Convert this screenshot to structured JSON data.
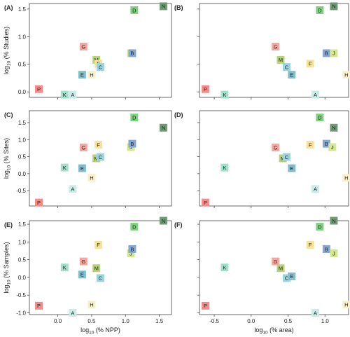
{
  "chart_data": [
    {
      "type": "scatter",
      "panel_label": "(A)",
      "title": "",
      "xlabel": "",
      "ylabel": "log10 (% Studies)",
      "xlim": [
        -0.42,
        1.68
      ],
      "ylim": [
        -0.1,
        1.6
      ],
      "xticks": [
        "0.0",
        "0.5",
        "1.0",
        "1.5"
      ],
      "show_xtick_labels": false,
      "yticks": [
        "0.0",
        "0.5",
        "1.0",
        "1.5"
      ],
      "show_ytick_labels": true,
      "points": [
        {
          "label": "P",
          "x": -0.28,
          "y": 0.05,
          "color": "#f28b8b"
        },
        {
          "label": "K",
          "x": 0.1,
          "y": -0.05,
          "color": "#a3e0cc"
        },
        {
          "label": "A",
          "x": 0.22,
          "y": -0.05,
          "color": "#c9ede6"
        },
        {
          "label": "G",
          "x": 0.38,
          "y": 0.82,
          "color": "#f2a7a0"
        },
        {
          "label": "E",
          "x": 0.36,
          "y": 0.31,
          "color": "#7fbfcf"
        },
        {
          "label": "H",
          "x": 0.5,
          "y": 0.31,
          "color": "#f7f0c8"
        },
        {
          "label": "M",
          "x": 0.57,
          "y": 0.58,
          "color": "#b9d17a"
        },
        {
          "label": "F",
          "x": 0.6,
          "y": 0.51,
          "color": "#f7e29a"
        },
        {
          "label": "C",
          "x": 0.63,
          "y": 0.45,
          "color": "#9dd4dc"
        },
        {
          "label": "J",
          "x": 1.08,
          "y": 0.7,
          "color": "#d3e88f"
        },
        {
          "label": "B",
          "x": 1.1,
          "y": 0.7,
          "color": "#86a8d0"
        },
        {
          "label": "D",
          "x": 1.13,
          "y": 1.48,
          "color": "#7fd07f"
        },
        {
          "label": "N",
          "x": 1.56,
          "y": 1.55,
          "color": "#6e9a74"
        }
      ]
    },
    {
      "type": "scatter",
      "panel_label": "(B)",
      "title": "",
      "xlabel": "",
      "ylabel": "",
      "xlim": [
        -0.7,
        1.32
      ],
      "ylim": [
        -0.1,
        1.6
      ],
      "xticks": [
        "-0.5",
        "0.0",
        "0.5",
        "1.0"
      ],
      "show_xtick_labels": false,
      "yticks": [
        "0.0",
        "0.5",
        "1.0",
        "1.5"
      ],
      "show_ytick_labels": false,
      "points": [
        {
          "label": "P",
          "x": -0.62,
          "y": 0.05,
          "color": "#f28b8b"
        },
        {
          "label": "K",
          "x": -0.36,
          "y": -0.05,
          "color": "#a3e0cc"
        },
        {
          "label": "G",
          "x": 0.33,
          "y": 0.82,
          "color": "#f2a7a0"
        },
        {
          "label": "M",
          "x": 0.4,
          "y": 0.58,
          "color": "#b9d17a"
        },
        {
          "label": "C",
          "x": 0.48,
          "y": 0.45,
          "color": "#9dd4dc"
        },
        {
          "label": "E",
          "x": 0.55,
          "y": 0.31,
          "color": "#7fbfcf"
        },
        {
          "label": "F",
          "x": 0.8,
          "y": 0.51,
          "color": "#f7e29a"
        },
        {
          "label": "A",
          "x": 0.87,
          "y": -0.05,
          "color": "#c9ede6"
        },
        {
          "label": "D",
          "x": 0.93,
          "y": 1.48,
          "color": "#7fd07f"
        },
        {
          "label": "B",
          "x": 1.02,
          "y": 0.7,
          "color": "#86a8d0"
        },
        {
          "label": "N",
          "x": 1.12,
          "y": 1.55,
          "color": "#6e9a74"
        },
        {
          "label": "J",
          "x": 1.12,
          "y": 0.7,
          "color": "#d3e88f"
        },
        {
          "label": "H",
          "x": 1.29,
          "y": 0.31,
          "color": "#f7f0c8"
        }
      ]
    },
    {
      "type": "scatter",
      "panel_label": "(C)",
      "title": "",
      "xlabel": "",
      "ylabel": "log10 (% Sites)",
      "xlim": [
        -0.42,
        1.68
      ],
      "ylim": [
        -0.95,
        1.85
      ],
      "xticks": [
        "0.0",
        "0.5",
        "1.0",
        "1.5"
      ],
      "show_xtick_labels": false,
      "yticks": [
        "-0.5",
        "0.0",
        "0.5",
        "1.0",
        "1.5"
      ],
      "show_ytick_labels": true,
      "points": [
        {
          "label": "P",
          "x": -0.28,
          "y": -0.85,
          "color": "#f28b8b"
        },
        {
          "label": "A",
          "x": 0.22,
          "y": -0.45,
          "color": "#c9ede6"
        },
        {
          "label": "K",
          "x": 0.1,
          "y": 0.18,
          "color": "#a3e0cc"
        },
        {
          "label": "E",
          "x": 0.36,
          "y": 0.16,
          "color": "#7fbfcf"
        },
        {
          "label": "H",
          "x": 0.5,
          "y": -0.12,
          "color": "#f7f0c8"
        },
        {
          "label": "G",
          "x": 0.38,
          "y": 0.77,
          "color": "#f2a7a0"
        },
        {
          "label": "M",
          "x": 0.57,
          "y": 0.45,
          "color": "#b9d17a"
        },
        {
          "label": "C",
          "x": 0.63,
          "y": 0.49,
          "color": "#9dd4dc"
        },
        {
          "label": "F",
          "x": 0.6,
          "y": 0.85,
          "color": "#f7e29a"
        },
        {
          "label": "J",
          "x": 1.08,
          "y": 0.78,
          "color": "#d3e88f"
        },
        {
          "label": "B",
          "x": 1.1,
          "y": 0.88,
          "color": "#86a8d0"
        },
        {
          "label": "D",
          "x": 1.13,
          "y": 1.65,
          "color": "#7fd07f"
        },
        {
          "label": "N",
          "x": 1.56,
          "y": 1.35,
          "color": "#6e9a74"
        }
      ]
    },
    {
      "type": "scatter",
      "panel_label": "(D)",
      "title": "",
      "xlabel": "",
      "ylabel": "",
      "xlim": [
        -0.7,
        1.32
      ],
      "ylim": [
        -0.95,
        1.85
      ],
      "xticks": [
        "-0.5",
        "0.0",
        "0.5",
        "1.0"
      ],
      "show_xtick_labels": false,
      "yticks": [
        "-0.5",
        "0.0",
        "0.5",
        "1.0",
        "1.5"
      ],
      "show_ytick_labels": false,
      "points": [
        {
          "label": "P",
          "x": -0.62,
          "y": -0.85,
          "color": "#f28b8b"
        },
        {
          "label": "K",
          "x": -0.36,
          "y": 0.18,
          "color": "#a3e0cc"
        },
        {
          "label": "G",
          "x": 0.33,
          "y": 0.77,
          "color": "#f2a7a0"
        },
        {
          "label": "M",
          "x": 0.43,
          "y": 0.45,
          "color": "#b9d17a"
        },
        {
          "label": "C",
          "x": 0.48,
          "y": 0.49,
          "color": "#9dd4dc"
        },
        {
          "label": "E",
          "x": 0.55,
          "y": 0.16,
          "color": "#7fbfcf"
        },
        {
          "label": "F",
          "x": 0.8,
          "y": 0.85,
          "color": "#f7e29a"
        },
        {
          "label": "A",
          "x": 0.87,
          "y": -0.45,
          "color": "#c9ede6"
        },
        {
          "label": "D",
          "x": 0.93,
          "y": 1.65,
          "color": "#7fd07f"
        },
        {
          "label": "B",
          "x": 1.02,
          "y": 0.88,
          "color": "#86a8d0"
        },
        {
          "label": "J",
          "x": 1.1,
          "y": 0.78,
          "color": "#d3e88f"
        },
        {
          "label": "N",
          "x": 1.12,
          "y": 1.35,
          "color": "#6e9a74"
        },
        {
          "label": "H",
          "x": 1.29,
          "y": -0.12,
          "color": "#f7f0c8"
        }
      ]
    },
    {
      "type": "scatter",
      "panel_label": "(E)",
      "title": "",
      "xlabel": "log10 (% NPP)",
      "ylabel": "log10 (% Samples)",
      "xlim": [
        -0.42,
        1.68
      ],
      "ylim": [
        -1.05,
        1.6
      ],
      "xticks": [
        "0.0",
        "0.5",
        "1.0",
        "1.5"
      ],
      "show_xtick_labels": true,
      "yticks": [
        "-1.0",
        "-0.5",
        "0.0",
        "0.5",
        "1.0",
        "1.5"
      ],
      "show_ytick_labels": true,
      "points": [
        {
          "label": "P",
          "x": -0.28,
          "y": -0.8,
          "color": "#f28b8b"
        },
        {
          "label": "A",
          "x": 0.22,
          "y": -1.0,
          "color": "#c9ede6"
        },
        {
          "label": "K",
          "x": 0.1,
          "y": 0.28,
          "color": "#a3e0cc"
        },
        {
          "label": "E",
          "x": 0.36,
          "y": 0.08,
          "color": "#7fbfcf"
        },
        {
          "label": "G",
          "x": 0.38,
          "y": 0.45,
          "color": "#f2a7a0"
        },
        {
          "label": "M",
          "x": 0.57,
          "y": 0.26,
          "color": "#b9d17a"
        },
        {
          "label": "C",
          "x": 0.63,
          "y": -0.02,
          "color": "#9dd4dc"
        },
        {
          "label": "H",
          "x": 0.5,
          "y": -0.77,
          "color": "#f7f0c8"
        },
        {
          "label": "F",
          "x": 0.6,
          "y": 0.92,
          "color": "#f7e29a"
        },
        {
          "label": "J",
          "x": 1.08,
          "y": 0.68,
          "color": "#d3e88f"
        },
        {
          "label": "B",
          "x": 1.1,
          "y": 0.8,
          "color": "#86a8d0"
        },
        {
          "label": "D",
          "x": 1.13,
          "y": 1.43,
          "color": "#7fd07f"
        },
        {
          "label": "N",
          "x": 1.56,
          "y": 1.6,
          "color": "#6e9a74"
        }
      ]
    },
    {
      "type": "scatter",
      "panel_label": "(F)",
      "title": "",
      "xlabel": "log10 (% area)",
      "ylabel": "",
      "xlim": [
        -0.7,
        1.32
      ],
      "ylim": [
        -1.05,
        1.6
      ],
      "xticks": [
        "-0.5",
        "0.0",
        "0.5",
        "1.0"
      ],
      "show_xtick_labels": true,
      "yticks": [
        "-1.0",
        "-0.5",
        "0.0",
        "0.5",
        "1.0",
        "1.5"
      ],
      "show_ytick_labels": false,
      "points": [
        {
          "label": "P",
          "x": -0.62,
          "y": -0.8,
          "color": "#f28b8b"
        },
        {
          "label": "K",
          "x": -0.36,
          "y": 0.28,
          "color": "#a3e0cc"
        },
        {
          "label": "G",
          "x": 0.33,
          "y": 0.45,
          "color": "#f2a7a0"
        },
        {
          "label": "M",
          "x": 0.4,
          "y": 0.26,
          "color": "#b9d17a"
        },
        {
          "label": "C",
          "x": 0.48,
          "y": -0.02,
          "color": "#9dd4dc"
        },
        {
          "label": "E",
          "x": 0.55,
          "y": 0.03,
          "color": "#7fbfcf"
        },
        {
          "label": "F",
          "x": 0.8,
          "y": 0.92,
          "color": "#f7e29a"
        },
        {
          "label": "A",
          "x": 0.87,
          "y": -1.0,
          "color": "#c9ede6"
        },
        {
          "label": "D",
          "x": 0.93,
          "y": 1.43,
          "color": "#7fd07f"
        },
        {
          "label": "B",
          "x": 1.02,
          "y": 0.8,
          "color": "#86a8d0"
        },
        {
          "label": "J",
          "x": 1.12,
          "y": 0.68,
          "color": "#d3e88f"
        },
        {
          "label": "N",
          "x": 1.12,
          "y": 1.6,
          "color": "#6e9a74"
        },
        {
          "label": "H",
          "x": 1.29,
          "y": -0.77,
          "color": "#f7f0c8"
        }
      ]
    }
  ]
}
